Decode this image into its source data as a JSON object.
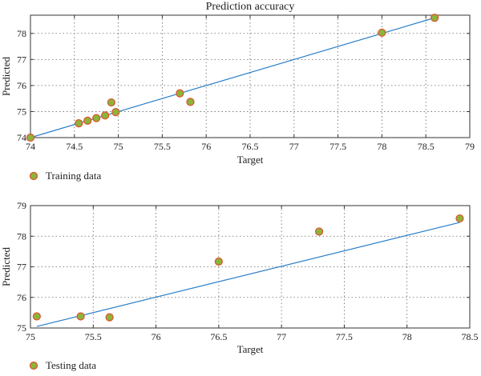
{
  "chart_data": [
    {
      "type": "scatter",
      "title": "Prediction accuracy",
      "xlabel": "Target",
      "ylabel": "Predicted",
      "xlim": [
        74,
        79
      ],
      "ylim": [
        74,
        78.7
      ],
      "xticks": [
        74,
        74.5,
        75,
        75.5,
        76,
        76.5,
        77,
        77.5,
        78,
        78.5,
        79
      ],
      "xtick_labels": [
        "74",
        "74.5",
        "75",
        "75.5",
        "76",
        "76.5",
        "77",
        "77.5",
        "78",
        "78.5",
        "79"
      ],
      "yticks": [
        74,
        75,
        76,
        77,
        78
      ],
      "ytick_labels": [
        "74",
        "75",
        "76",
        "77",
        "78"
      ],
      "grid": true,
      "legend_position": "bottom-left",
      "series": [
        {
          "name": "Training data",
          "marker_color": "#8db43a",
          "marker_edge": "#e0502a",
          "points": [
            [
              74.0,
              74.0
            ],
            [
              74.55,
              74.55
            ],
            [
              74.65,
              74.65
            ],
            [
              74.75,
              74.75
            ],
            [
              74.85,
              74.85
            ],
            [
              74.92,
              75.35
            ],
            [
              74.97,
              74.98
            ],
            [
              75.7,
              75.7
            ],
            [
              75.82,
              75.37
            ],
            [
              78.0,
              78.03
            ],
            [
              78.6,
              78.6
            ]
          ]
        }
      ],
      "fit_line": {
        "color": "#2a7fc8",
        "from": [
          74.0,
          74.0
        ],
        "to": [
          78.6,
          78.6
        ]
      }
    },
    {
      "type": "scatter",
      "title": "",
      "xlabel": "Target",
      "ylabel": "Predicted",
      "xlim": [
        75,
        78.5
      ],
      "ylim": [
        75,
        79
      ],
      "xticks": [
        75,
        75.5,
        76,
        76.5,
        77,
        77.5,
        78,
        78.5
      ],
      "xtick_labels": [
        "75",
        "75.5",
        "76",
        "76.5",
        "77",
        "77.5",
        "78",
        "78.5"
      ],
      "yticks": [
        75,
        76,
        77,
        78,
        79
      ],
      "ytick_labels": [
        "75",
        "76",
        "77",
        "78",
        "79"
      ],
      "grid": true,
      "legend_position": "bottom-left",
      "series": [
        {
          "name": "Testing data",
          "marker_color": "#8db43a",
          "marker_edge": "#e0502a",
          "points": [
            [
              75.05,
              75.38
            ],
            [
              75.4,
              75.38
            ],
            [
              75.63,
              75.35
            ],
            [
              76.5,
              77.17
            ],
            [
              77.3,
              78.15
            ],
            [
              78.42,
              78.58
            ]
          ]
        }
      ],
      "fit_line": {
        "color": "#2a7fc8",
        "from": [
          75.05,
          75.05
        ],
        "to": [
          78.42,
          78.45
        ]
      }
    }
  ]
}
